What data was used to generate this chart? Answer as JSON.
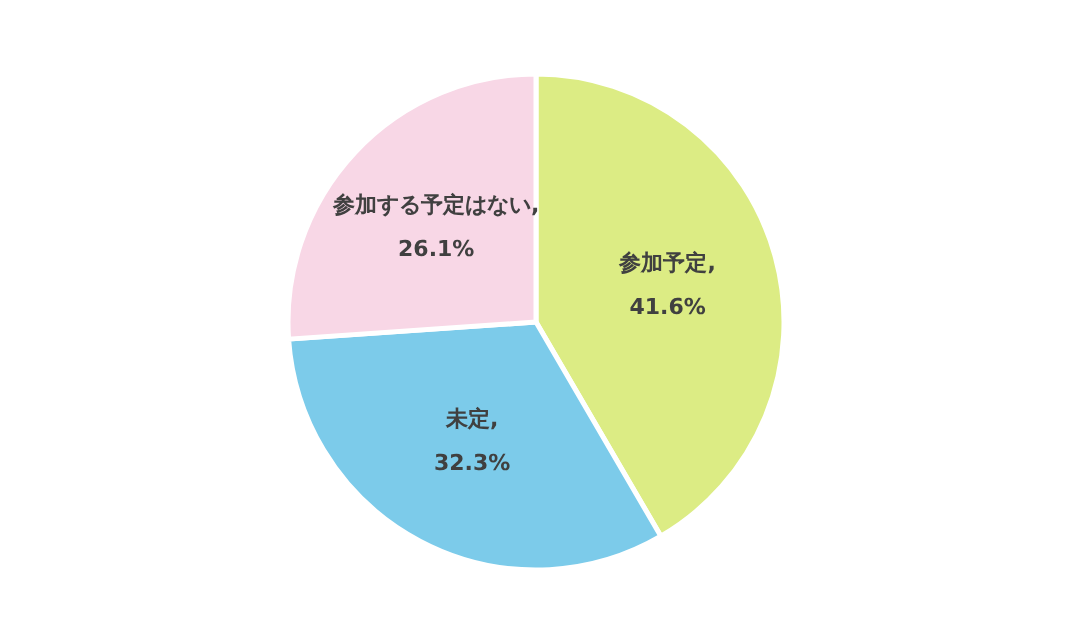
{
  "chart_data": {
    "type": "pie",
    "categories": [
      "参加予定",
      "未定",
      "参加する予定はない"
    ],
    "values": [
      41.6,
      32.3,
      26.1
    ],
    "colors": [
      "#dcec84",
      "#7ccbea",
      "#f8d7e6"
    ],
    "value_labels": [
      ",\n41.6%",
      ",\n32.3%",
      ",\n26.1%"
    ],
    "legend": false
  }
}
